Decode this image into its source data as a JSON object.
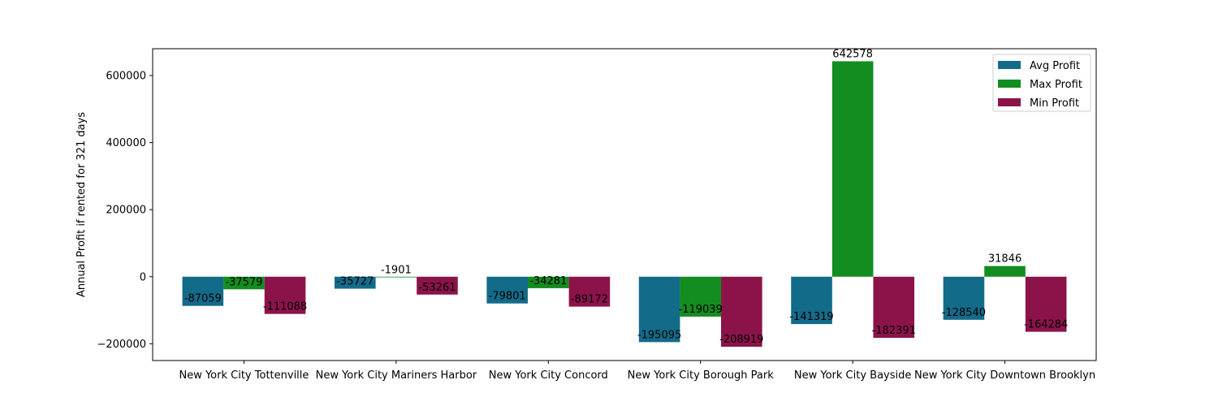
{
  "chart_data": {
    "type": "bar",
    "title": "",
    "xlabel": "",
    "ylabel": "Annual Profit if rented for 321 days",
    "categories": [
      "New York City Tottenville",
      "New York City Mariners Harbor",
      "New York City Concord",
      "New York City Borough Park",
      "New York City Bayside",
      "New York City Downtown Brooklyn"
    ],
    "series": [
      {
        "name": "Avg Profit",
        "color": "#136b8a",
        "values": [
          -87059,
          -35727,
          -79801,
          -195095,
          -141319,
          -128540
        ]
      },
      {
        "name": "Max Profit",
        "color": "#138c20",
        "values": [
          -37579,
          -1901,
          -34281,
          -119039,
          642578,
          31846
        ]
      },
      {
        "name": "Min Profit",
        "color": "#8c134a",
        "values": [
          -111088,
          -53261,
          -89172,
          -208919,
          -182391,
          -164284
        ]
      }
    ],
    "ylim": [
      -250000,
      680000
    ],
    "yticks": [
      -200000,
      0,
      200000,
      400000,
      600000
    ],
    "ytick_labels": [
      "−200000",
      "0",
      "200000",
      "400000",
      "600000"
    ],
    "legend": {
      "position": "top-right"
    },
    "grid": false
  }
}
